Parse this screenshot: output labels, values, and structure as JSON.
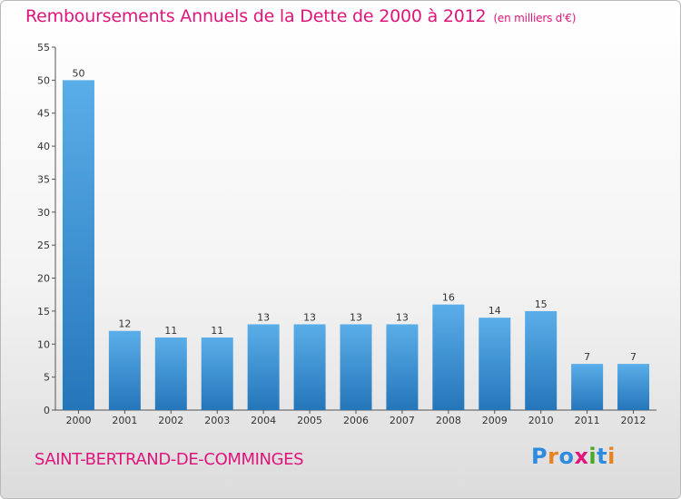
{
  "chart_data": {
    "type": "bar",
    "title": "Remboursements Annuels de la Dette de 2000 à 2012",
    "subtitle": "(en milliers d'€)",
    "categories": [
      "2000",
      "2001",
      "2002",
      "2003",
      "2004",
      "2005",
      "2006",
      "2007",
      "2008",
      "2009",
      "2010",
      "2011",
      "2012"
    ],
    "values": [
      50,
      12,
      11,
      11,
      13,
      13,
      13,
      13,
      16,
      14,
      15,
      7,
      7
    ],
    "ylim": [
      0,
      55
    ],
    "yticks": [
      0,
      5,
      10,
      15,
      20,
      25,
      30,
      35,
      40,
      45,
      50,
      55
    ],
    "xlabel": "",
    "ylabel": "",
    "bar_color_top": "#5aaee8",
    "bar_color_bottom": "#2476ba"
  },
  "footer": {
    "city": "SAINT-BERTRAND-DE-COMMINGES",
    "logo_letters": [
      "P",
      "r",
      "o",
      "x",
      "i",
      "t",
      "i"
    ]
  },
  "colors": {
    "accent": "#e0157c"
  }
}
